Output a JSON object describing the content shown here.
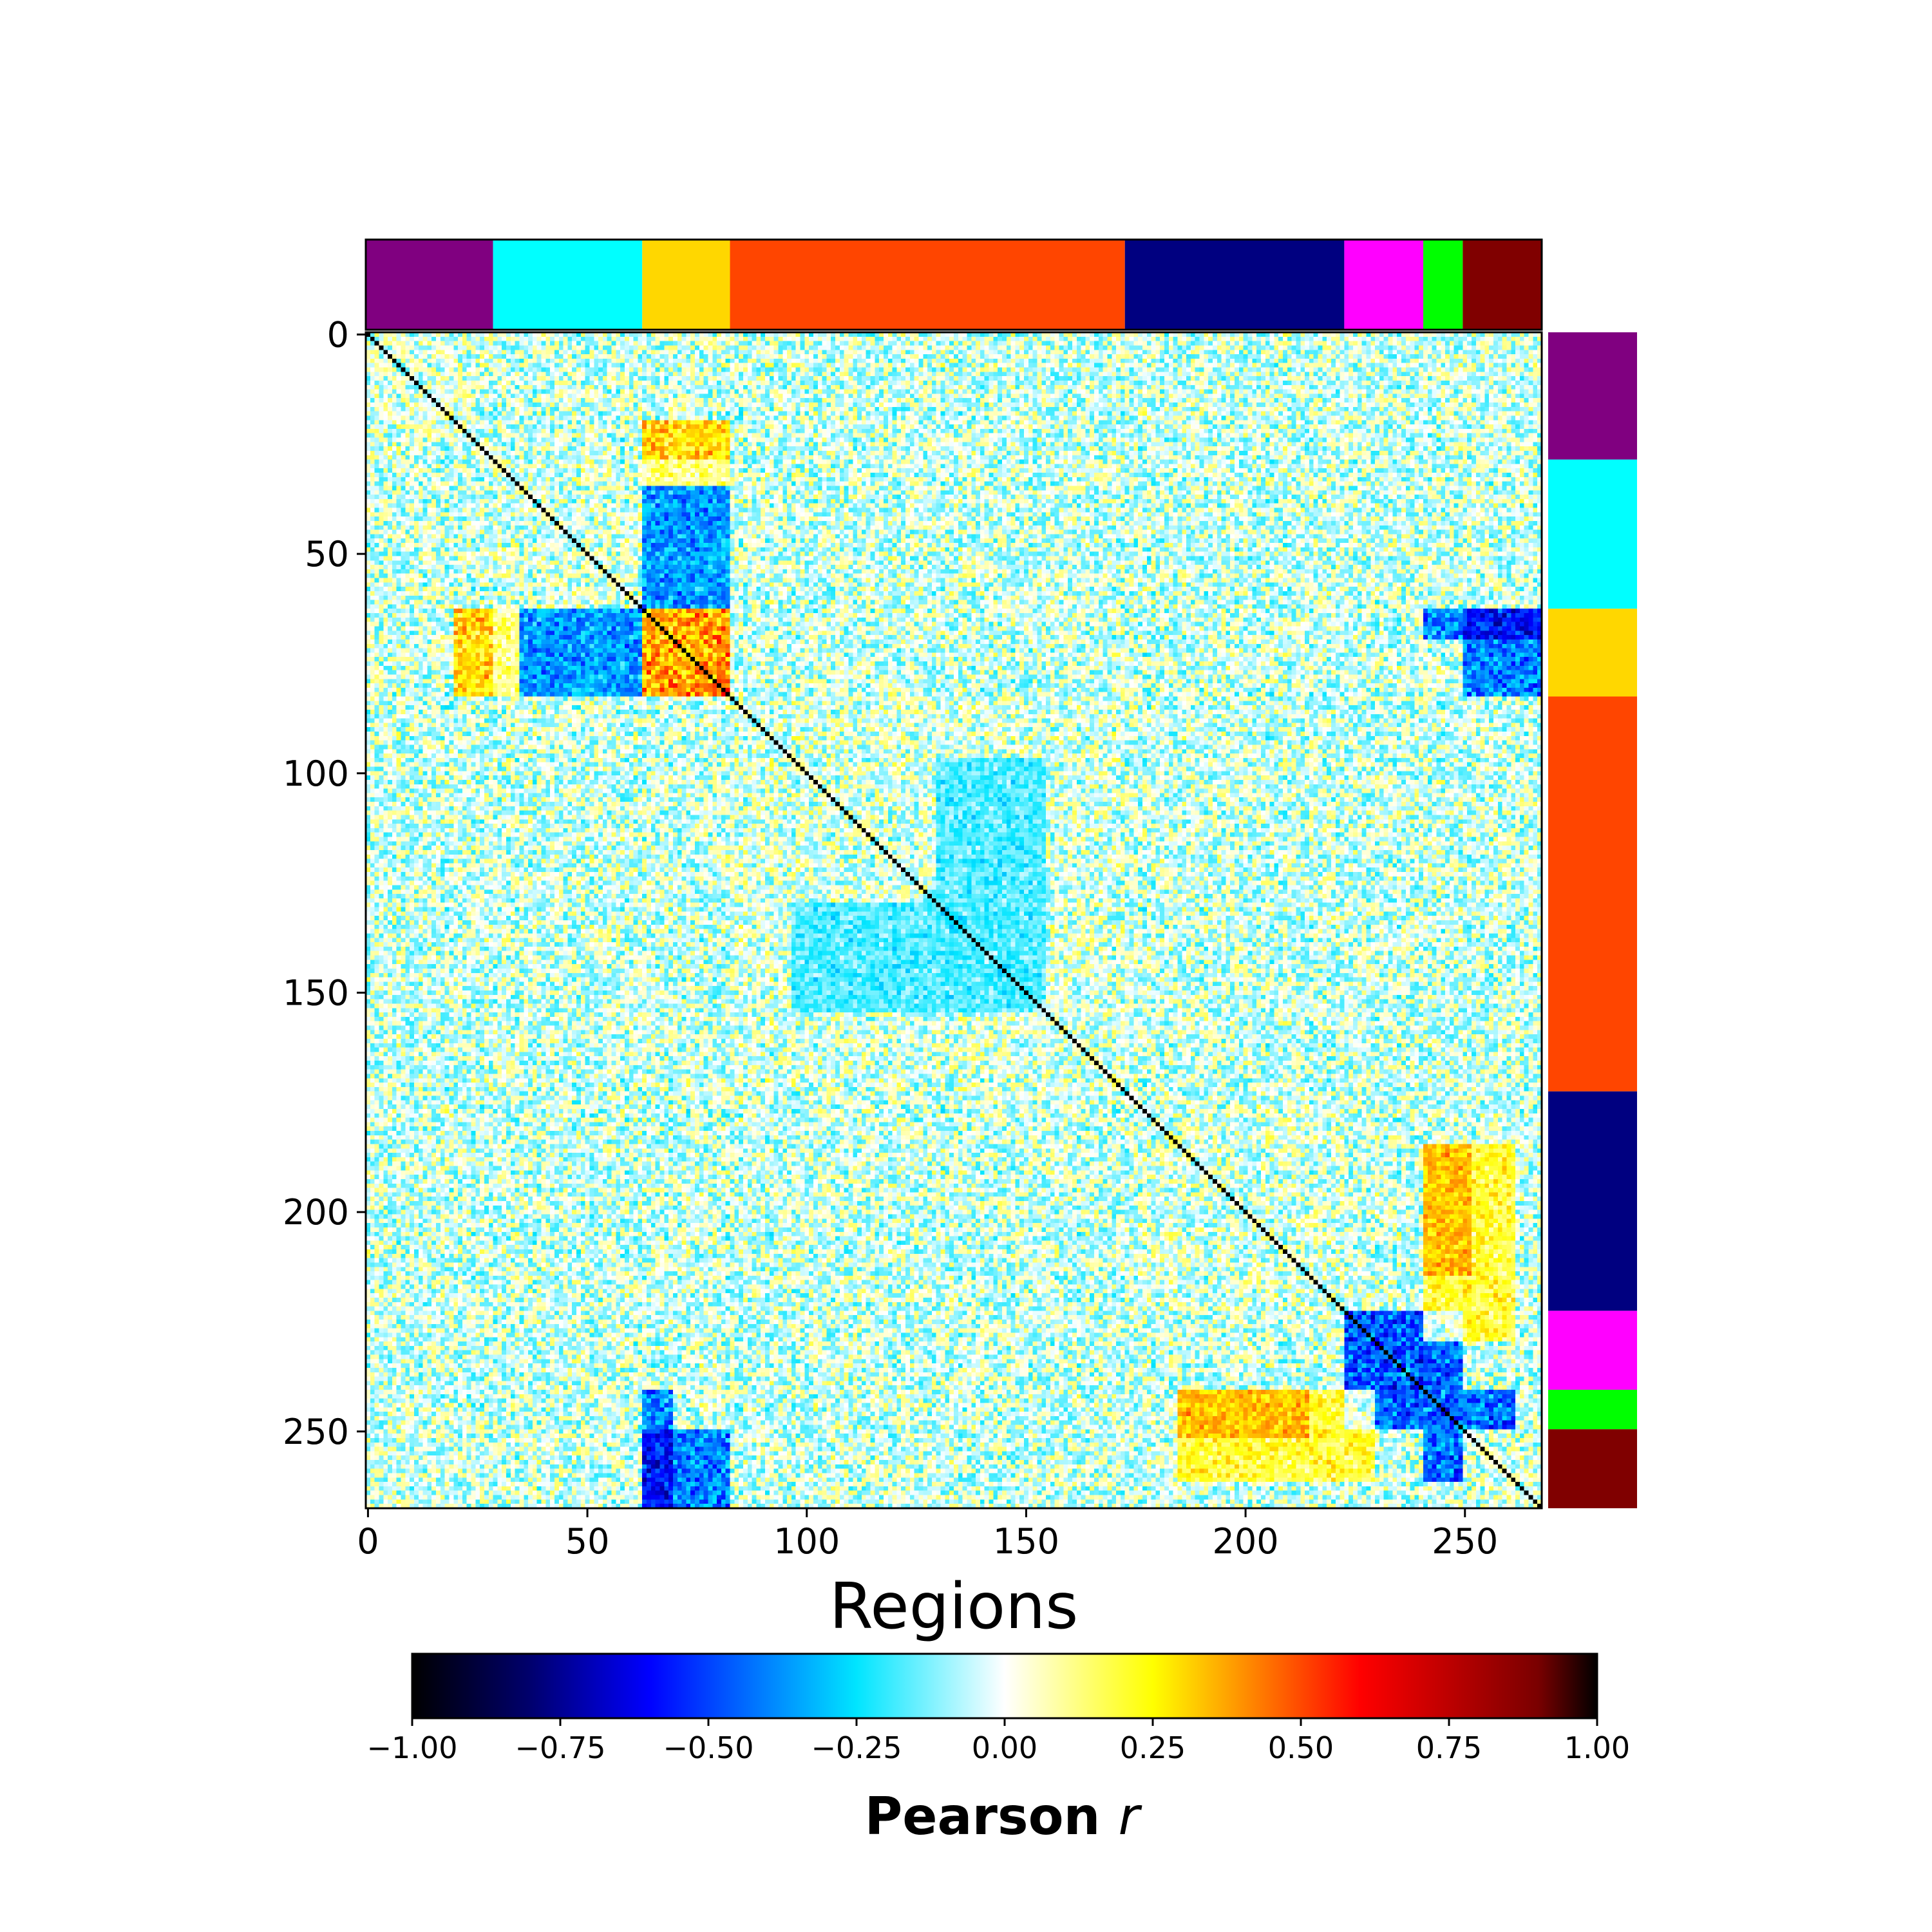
{
  "chart_data": {
    "type": "heatmap",
    "n_regions": 268,
    "xlabel": "Regions",
    "ylabel": "",
    "x_ticks": [
      0,
      50,
      100,
      150,
      200,
      250
    ],
    "y_ticks": [
      0,
      50,
      100,
      150,
      200,
      250
    ],
    "xlim": [
      0,
      268
    ],
    "ylim": [
      268,
      0
    ],
    "diagonal_value": 1.0,
    "colormap": {
      "name": "jet-like diverging",
      "stops": [
        {
          "value": -1.0,
          "color": "#000000"
        },
        {
          "value": -0.8,
          "color": "#00006e"
        },
        {
          "value": -0.6,
          "color": "#0000ff"
        },
        {
          "value": -0.25,
          "color": "#00e5ff"
        },
        {
          "value": 0.0,
          "color": "#ffffff"
        },
        {
          "value": 0.25,
          "color": "#ffff00"
        },
        {
          "value": 0.6,
          "color": "#ff0000"
        },
        {
          "value": 0.9,
          "color": "#7a0000"
        },
        {
          "value": 1.0,
          "color": "#000000"
        }
      ]
    },
    "colorbar": {
      "label": "Pearson",
      "label_italic": "r",
      "range": [
        -1.0,
        1.0
      ],
      "tick_labels": [
        "−1.00",
        "−0.75",
        "−0.50",
        "−0.25",
        "0.00",
        "0.25",
        "0.50",
        "0.75",
        "1.00"
      ],
      "tick_values": [
        -1.0,
        -0.75,
        -0.5,
        -0.25,
        0.0,
        0.25,
        0.5,
        0.75,
        1.0
      ]
    },
    "networks": [
      {
        "start": 0,
        "end": 29,
        "color": "#800080"
      },
      {
        "start": 29,
        "end": 63,
        "color": "#00ffff"
      },
      {
        "start": 63,
        "end": 83,
        "color": "#ffd700"
      },
      {
        "start": 83,
        "end": 173,
        "color": "#ff4500"
      },
      {
        "start": 173,
        "end": 223,
        "color": "#000080"
      },
      {
        "start": 223,
        "end": 241,
        "color": "#ff00ff"
      },
      {
        "start": 241,
        "end": 250,
        "color": "#00ff00"
      },
      {
        "start": 250,
        "end": 268,
        "color": "#800000"
      }
    ],
    "notable_blocks": [
      {
        "rows": [
          223,
          241
        ],
        "cols": [
          223,
          241
        ],
        "mean_r": -0.55
      },
      {
        "rows": [
          63,
          83
        ],
        "cols": [
          63,
          83
        ],
        "mean_r": 0.45
      },
      {
        "rows": [
          63,
          83
        ],
        "cols": [
          29,
          63
        ],
        "mean_r": -0.4
      },
      {
        "rows": [
          63,
          83
        ],
        "cols": [
          250,
          268
        ],
        "mean_r": -0.45
      },
      {
        "rows": [
          241,
          268
        ],
        "cols": [
          63,
          70
        ],
        "mean_r": -0.45
      },
      {
        "rows": [
          241,
          250
        ],
        "cols": [
          223,
          262
        ],
        "mean_r": -0.5
      },
      {
        "rows": [
          241,
          252
        ],
        "cols": [
          185,
          215
        ],
        "mean_r": 0.3
      },
      {
        "rows": [
          185,
          230
        ],
        "cols": [
          241,
          262
        ],
        "mean_r": 0.25
      },
      {
        "rows": [
          130,
          155
        ],
        "cols": [
          97,
          155
        ],
        "mean_r": -0.2
      },
      {
        "rows": [
          20,
          35
        ],
        "cols": [
          63,
          83
        ],
        "mean_r": 0.35
      }
    ]
  }
}
